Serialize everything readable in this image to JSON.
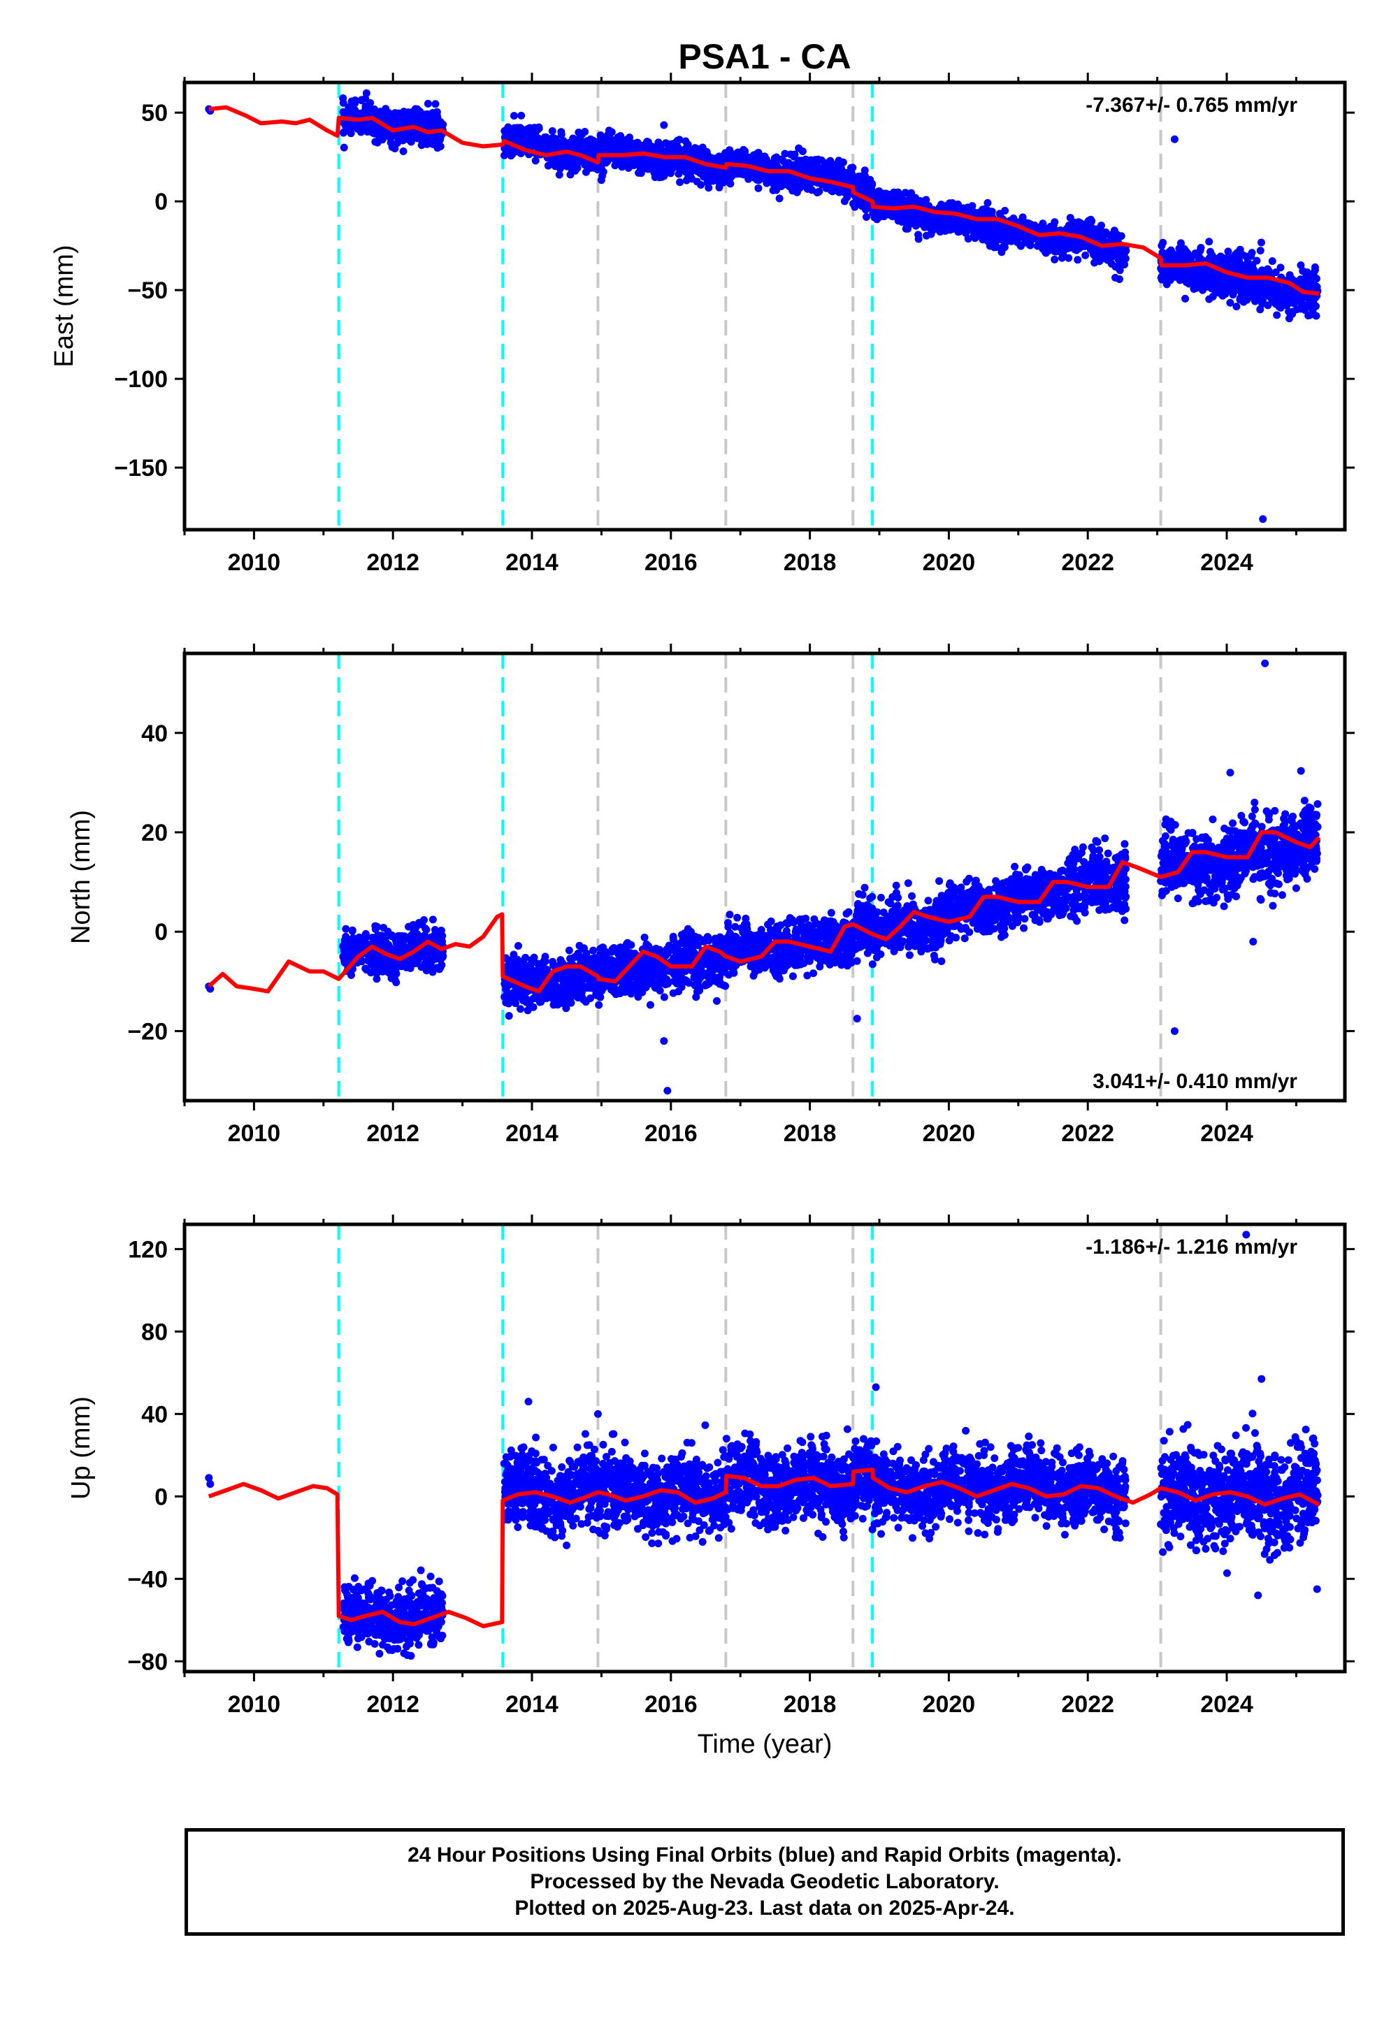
{
  "title": "PSA1 - CA",
  "footer": {
    "lines": [
      "24 Hour Positions Using Final Orbits (blue) and Rapid Orbits (magenta).",
      "Processed by the Nevada Geodetic Laboratory.",
      "Plotted on 2025-Aug-23. Last data on 2025-Apr-24."
    ]
  },
  "colors": {
    "points": "#0000ff",
    "model": "#ff0000",
    "equipment_change": "#00ffff",
    "other_event": "#c8c8c8"
  },
  "chart_data": [
    {
      "type": "scatter",
      "name": "east",
      "title": "PSA1 - CA",
      "xlabel": "",
      "ylabel": "East (mm)",
      "xlim": [
        2009.0,
        2025.7
      ],
      "ylim": [
        -185,
        67
      ],
      "xticks": [
        2010,
        2012,
        2014,
        2016,
        2018,
        2020,
        2022,
        2024
      ],
      "yticks": [
        50,
        0,
        -50,
        -100,
        -150
      ],
      "rate_text": "-7.367+/- 0.765 mm/yr",
      "rate_position": "top-right",
      "equipment_changes": [
        2011.22,
        2013.58,
        2018.9
      ],
      "other_events": [
        2014.95,
        2016.79,
        2018.62,
        2023.05
      ],
      "segments": [
        {
          "t0": 2009.35,
          "t1": 2009.36,
          "points": [
            [
              2009.35,
              52
            ],
            [
              2009.37,
              51
            ]
          ]
        },
        {
          "t0": 2011.28,
          "t1": 2012.72,
          "c": 43,
          "rate": -4.0,
          "spread": 4.5
        },
        {
          "t0": 2013.6,
          "t1": 2014.95,
          "c": 30,
          "rate": -6.0,
          "spread": 4.5
        },
        {
          "t0": 2014.95,
          "t1": 2016.79,
          "c": 24,
          "rate": -5.5,
          "spread": 4.5
        },
        {
          "t0": 2016.79,
          "t1": 2018.62,
          "c": 16,
          "rate": -5.0,
          "spread": 4.5
        },
        {
          "t0": 2018.62,
          "t1": 2018.9,
          "c": 5,
          "rate": -6.0,
          "spread": 4.5
        },
        {
          "t0": 2018.9,
          "t1": 2021.7,
          "c": -12,
          "rate": -7.5,
          "spread": 4.0
        },
        {
          "t0": 2021.7,
          "t1": 2022.55,
          "c": -24,
          "rate": -8.0,
          "spread": 5.0
        },
        {
          "t0": 2023.05,
          "t1": 2025.31,
          "c": -44,
          "rate": -8.0,
          "spread": 6.0
        }
      ],
      "outliers": [
        [
          2011.62,
          61
        ],
        [
          2015.0,
          12
        ],
        [
          2015.9,
          43
        ],
        [
          2023.25,
          35
        ],
        [
          2024.52,
          -179
        ],
        [
          2025.2,
          -64
        ],
        [
          2024.9,
          -66
        ]
      ],
      "model": [
        [
          2009.35,
          52
        ],
        [
          2009.6,
          53
        ],
        [
          2009.9,
          48
        ],
        [
          2010.1,
          44
        ],
        [
          2010.4,
          45
        ],
        [
          2010.6,
          44
        ],
        [
          2010.8,
          46
        ],
        [
          2011.05,
          40
        ],
        [
          2011.2,
          37
        ],
        [
          2011.22,
          47
        ],
        [
          2011.5,
          46
        ],
        [
          2011.7,
          47
        ],
        [
          2012.0,
          40
        ],
        [
          2012.3,
          42
        ],
        [
          2012.5,
          39
        ],
        [
          2012.7,
          40
        ],
        [
          2013.0,
          33
        ],
        [
          2013.3,
          31
        ],
        [
          2013.58,
          32
        ],
        [
          2013.6,
          34
        ],
        [
          2013.9,
          29
        ],
        [
          2014.2,
          26
        ],
        [
          2014.5,
          28
        ],
        [
          2014.7,
          26
        ],
        [
          2014.95,
          22
        ],
        [
          2014.96,
          26
        ],
        [
          2015.3,
          26
        ],
        [
          2015.6,
          27
        ],
        [
          2015.9,
          25
        ],
        [
          2016.2,
          25
        ],
        [
          2016.5,
          21
        ],
        [
          2016.79,
          19
        ],
        [
          2016.8,
          21
        ],
        [
          2017.1,
          20
        ],
        [
          2017.4,
          17
        ],
        [
          2017.7,
          17
        ],
        [
          2018.0,
          13
        ],
        [
          2018.3,
          11
        ],
        [
          2018.62,
          8
        ],
        [
          2018.63,
          5
        ],
        [
          2018.9,
          0
        ],
        [
          2018.91,
          -3
        ],
        [
          2019.2,
          -4
        ],
        [
          2019.5,
          -3
        ],
        [
          2019.8,
          -6
        ],
        [
          2020.1,
          -7
        ],
        [
          2020.4,
          -10
        ],
        [
          2020.7,
          -10
        ],
        [
          2021.0,
          -14
        ],
        [
          2021.3,
          -19
        ],
        [
          2021.6,
          -18
        ],
        [
          2021.9,
          -20
        ],
        [
          2022.2,
          -25
        ],
        [
          2022.5,
          -24
        ],
        [
          2022.8,
          -26
        ],
        [
          2023.05,
          -32
        ],
        [
          2023.06,
          -36
        ],
        [
          2023.4,
          -36
        ],
        [
          2023.7,
          -35
        ],
        [
          2024.0,
          -40
        ],
        [
          2024.3,
          -43
        ],
        [
          2024.6,
          -43
        ],
        [
          2024.9,
          -46
        ],
        [
          2025.1,
          -51
        ],
        [
          2025.33,
          -52
        ]
      ]
    },
    {
      "type": "scatter",
      "name": "north",
      "xlabel": "",
      "ylabel": "North (mm)",
      "xlim": [
        2009.0,
        2025.7
      ],
      "ylim": [
        -34,
        56
      ],
      "xticks": [
        2010,
        2012,
        2014,
        2016,
        2018,
        2020,
        2022,
        2024
      ],
      "yticks": [
        40,
        20,
        0,
        -20
      ],
      "rate_text": "3.041+/- 0.410 mm/yr",
      "rate_position": "bottom-right",
      "equipment_changes": [
        2011.22,
        2013.58,
        2018.9
      ],
      "other_events": [
        2014.95,
        2016.79,
        2018.62,
        2023.05
      ],
      "segments": [
        {
          "t0": 2009.35,
          "t1": 2009.36,
          "points": [
            [
              2009.35,
              -11
            ],
            [
              2009.37,
              -11.5
            ]
          ]
        },
        {
          "t0": 2011.28,
          "t1": 2012.72,
          "c": -4,
          "rate": 0.5,
          "spread": 2.0
        },
        {
          "t0": 2013.6,
          "t1": 2014.95,
          "c": -10,
          "rate": 1.5,
          "spread": 2.5
        },
        {
          "t0": 2014.95,
          "t1": 2016.79,
          "c": -7,
          "rate": 1.5,
          "spread": 2.5
        },
        {
          "t0": 2016.79,
          "t1": 2018.62,
          "c": -3,
          "rate": 1.5,
          "spread": 2.5
        },
        {
          "t0": 2018.62,
          "t1": 2018.9,
          "c": 1,
          "rate": 2.0,
          "spread": 2.5
        },
        {
          "t0": 2018.9,
          "t1": 2021.7,
          "c": 4,
          "rate": 3.5,
          "spread": 2.5
        },
        {
          "t0": 2021.7,
          "t1": 2022.55,
          "c": 10,
          "rate": 4.0,
          "spread": 3.0
        },
        {
          "t0": 2023.05,
          "t1": 2025.31,
          "c": 15,
          "rate": 2.5,
          "spread": 3.5
        }
      ],
      "outliers": [
        [
          2015.9,
          -22
        ],
        [
          2015.95,
          -32
        ],
        [
          2018.68,
          -17.5
        ],
        [
          2023.25,
          -20
        ],
        [
          2024.05,
          32
        ],
        [
          2024.38,
          -2
        ],
        [
          2024.55,
          54
        ],
        [
          2024.4,
          26
        ]
      ],
      "model": [
        [
          2009.35,
          -11
        ],
        [
          2009.55,
          -8.5
        ],
        [
          2009.75,
          -11
        ],
        [
          2010.0,
          -11.5
        ],
        [
          2010.2,
          -12
        ],
        [
          2010.5,
          -6
        ],
        [
          2010.8,
          -8
        ],
        [
          2011.0,
          -8
        ],
        [
          2011.22,
          -9.5
        ],
        [
          2011.5,
          -5
        ],
        [
          2011.7,
          -3
        ],
        [
          2011.9,
          -4.5
        ],
        [
          2012.1,
          -5.5
        ],
        [
          2012.3,
          -4
        ],
        [
          2012.5,
          -2
        ],
        [
          2012.7,
          -3.5
        ],
        [
          2012.9,
          -2.5
        ],
        [
          2013.1,
          -3
        ],
        [
          2013.3,
          -1
        ],
        [
          2013.5,
          3
        ],
        [
          2013.57,
          3.5
        ],
        [
          2013.58,
          -9
        ],
        [
          2013.9,
          -11
        ],
        [
          2014.1,
          -12
        ],
        [
          2014.3,
          -8
        ],
        [
          2014.5,
          -7
        ],
        [
          2014.7,
          -7
        ],
        [
          2014.95,
          -9
        ],
        [
          2014.96,
          -9.5
        ],
        [
          2015.2,
          -10
        ],
        [
          2015.4,
          -7
        ],
        [
          2015.6,
          -4
        ],
        [
          2015.8,
          -5
        ],
        [
          2016.0,
          -7
        ],
        [
          2016.3,
          -7
        ],
        [
          2016.5,
          -3
        ],
        [
          2016.7,
          -4
        ],
        [
          2016.79,
          -5
        ],
        [
          2016.8,
          -5
        ],
        [
          2017.0,
          -6
        ],
        [
          2017.3,
          -5
        ],
        [
          2017.5,
          -2
        ],
        [
          2017.7,
          -2
        ],
        [
          2018.0,
          -3
        ],
        [
          2018.3,
          -4
        ],
        [
          2018.5,
          1
        ],
        [
          2018.62,
          1.5
        ],
        [
          2018.9,
          -0.5
        ],
        [
          2019.1,
          -1.5
        ],
        [
          2019.3,
          1
        ],
        [
          2019.5,
          4
        ],
        [
          2019.7,
          3
        ],
        [
          2020.0,
          2
        ],
        [
          2020.3,
          3
        ],
        [
          2020.5,
          7
        ],
        [
          2020.7,
          7
        ],
        [
          2021.0,
          6
        ],
        [
          2021.3,
          6
        ],
        [
          2021.5,
          10
        ],
        [
          2021.7,
          10
        ],
        [
          2022.0,
          9
        ],
        [
          2022.3,
          9
        ],
        [
          2022.5,
          14
        ],
        [
          2022.7,
          13
        ],
        [
          2023.05,
          11
        ],
        [
          2023.3,
          12
        ],
        [
          2023.5,
          16
        ],
        [
          2023.7,
          16
        ],
        [
          2024.0,
          15
        ],
        [
          2024.3,
          15
        ],
        [
          2024.5,
          20
        ],
        [
          2024.7,
          20
        ],
        [
          2025.0,
          18
        ],
        [
          2025.2,
          17
        ],
        [
          2025.33,
          19
        ]
      ]
    },
    {
      "type": "scatter",
      "name": "up",
      "xlabel": "Time (year)",
      "ylabel": "Up (mm)",
      "xlim": [
        2009.0,
        2025.7
      ],
      "ylim": [
        -85,
        132
      ],
      "xticks": [
        2010,
        2012,
        2014,
        2016,
        2018,
        2020,
        2022,
        2024
      ],
      "yticks": [
        120,
        80,
        40,
        0,
        -40,
        -80
      ],
      "rate_text": "-1.186+/- 1.216 mm/yr",
      "rate_position": "top-right",
      "equipment_changes": [
        2011.22,
        2013.58,
        2018.9
      ],
      "other_events": [
        2014.95,
        2016.79,
        2018.62,
        2023.05
      ],
      "segments": [
        {
          "t0": 2009.35,
          "t1": 2009.36,
          "points": [
            [
              2009.35,
              9
            ],
            [
              2009.37,
              6
            ]
          ]
        },
        {
          "t0": 2011.28,
          "t1": 2012.72,
          "c": -58,
          "rate": 0,
          "spread": 7
        },
        {
          "t0": 2013.6,
          "t1": 2014.95,
          "c": 2,
          "rate": 0,
          "spread": 9
        },
        {
          "t0": 2014.95,
          "t1": 2016.79,
          "c": 1,
          "rate": 0,
          "spread": 9
        },
        {
          "t0": 2016.79,
          "t1": 2018.62,
          "c": 6,
          "rate": 0,
          "spread": 9
        },
        {
          "t0": 2018.62,
          "t1": 2018.9,
          "c": 8,
          "rate": 0,
          "spread": 9
        },
        {
          "t0": 2018.9,
          "t1": 2021.7,
          "c": 4,
          "rate": 0,
          "spread": 8
        },
        {
          "t0": 2021.7,
          "t1": 2022.55,
          "c": 2,
          "rate": 0,
          "spread": 8
        },
        {
          "t0": 2023.05,
          "t1": 2025.31,
          "c": 0,
          "rate": 0,
          "spread": 12
        }
      ],
      "outliers": [
        [
          2013.95,
          46
        ],
        [
          2014.95,
          40
        ],
        [
          2018.95,
          53
        ],
        [
          2024.5,
          57
        ],
        [
          2024.45,
          -48
        ],
        [
          2025.3,
          -45
        ],
        [
          2024.28,
          127
        ],
        [
          2025.0,
          27
        ]
      ],
      "model": [
        [
          2009.35,
          0
        ],
        [
          2009.6,
          3
        ],
        [
          2009.85,
          6
        ],
        [
          2010.1,
          3
        ],
        [
          2010.35,
          -1
        ],
        [
          2010.6,
          2
        ],
        [
          2010.85,
          5
        ],
        [
          2011.05,
          4
        ],
        [
          2011.2,
          1
        ],
        [
          2011.22,
          -58
        ],
        [
          2011.4,
          -60
        ],
        [
          2011.6,
          -58
        ],
        [
          2011.85,
          -56
        ],
        [
          2012.1,
          -61
        ],
        [
          2012.3,
          -62
        ],
        [
          2012.55,
          -59
        ],
        [
          2012.8,
          -56
        ],
        [
          2013.05,
          -59
        ],
        [
          2013.3,
          -63
        ],
        [
          2013.57,
          -61
        ],
        [
          2013.58,
          -2
        ],
        [
          2013.8,
          1
        ],
        [
          2014.05,
          2
        ],
        [
          2014.3,
          0
        ],
        [
          2014.55,
          -3
        ],
        [
          2014.8,
          0
        ],
        [
          2014.95,
          2
        ],
        [
          2015.1,
          1
        ],
        [
          2015.35,
          -2
        ],
        [
          2015.6,
          0
        ],
        [
          2015.85,
          3
        ],
        [
          2016.1,
          2
        ],
        [
          2016.35,
          -3
        ],
        [
          2016.6,
          -1
        ],
        [
          2016.79,
          2
        ],
        [
          2016.8,
          10
        ],
        [
          2017.05,
          9
        ],
        [
          2017.3,
          5
        ],
        [
          2017.55,
          5
        ],
        [
          2017.8,
          8
        ],
        [
          2018.05,
          9
        ],
        [
          2018.3,
          5
        ],
        [
          2018.62,
          6
        ],
        [
          2018.63,
          12
        ],
        [
          2018.9,
          13
        ],
        [
          2018.91,
          9
        ],
        [
          2019.15,
          4
        ],
        [
          2019.4,
          2
        ],
        [
          2019.65,
          5
        ],
        [
          2019.9,
          7
        ],
        [
          2020.15,
          4
        ],
        [
          2020.4,
          0
        ],
        [
          2020.65,
          3
        ],
        [
          2020.9,
          6
        ],
        [
          2021.15,
          4
        ],
        [
          2021.4,
          0
        ],
        [
          2021.65,
          1
        ],
        [
          2021.9,
          5
        ],
        [
          2022.15,
          4
        ],
        [
          2022.4,
          0
        ],
        [
          2022.65,
          -3
        ],
        [
          2022.9,
          1
        ],
        [
          2023.05,
          4
        ],
        [
          2023.3,
          2
        ],
        [
          2023.55,
          -2
        ],
        [
          2023.8,
          1
        ],
        [
          2024.05,
          2
        ],
        [
          2024.3,
          0
        ],
        [
          2024.55,
          -4
        ],
        [
          2024.8,
          -1
        ],
        [
          2025.05,
          1
        ],
        [
          2025.33,
          -4
        ]
      ]
    }
  ]
}
